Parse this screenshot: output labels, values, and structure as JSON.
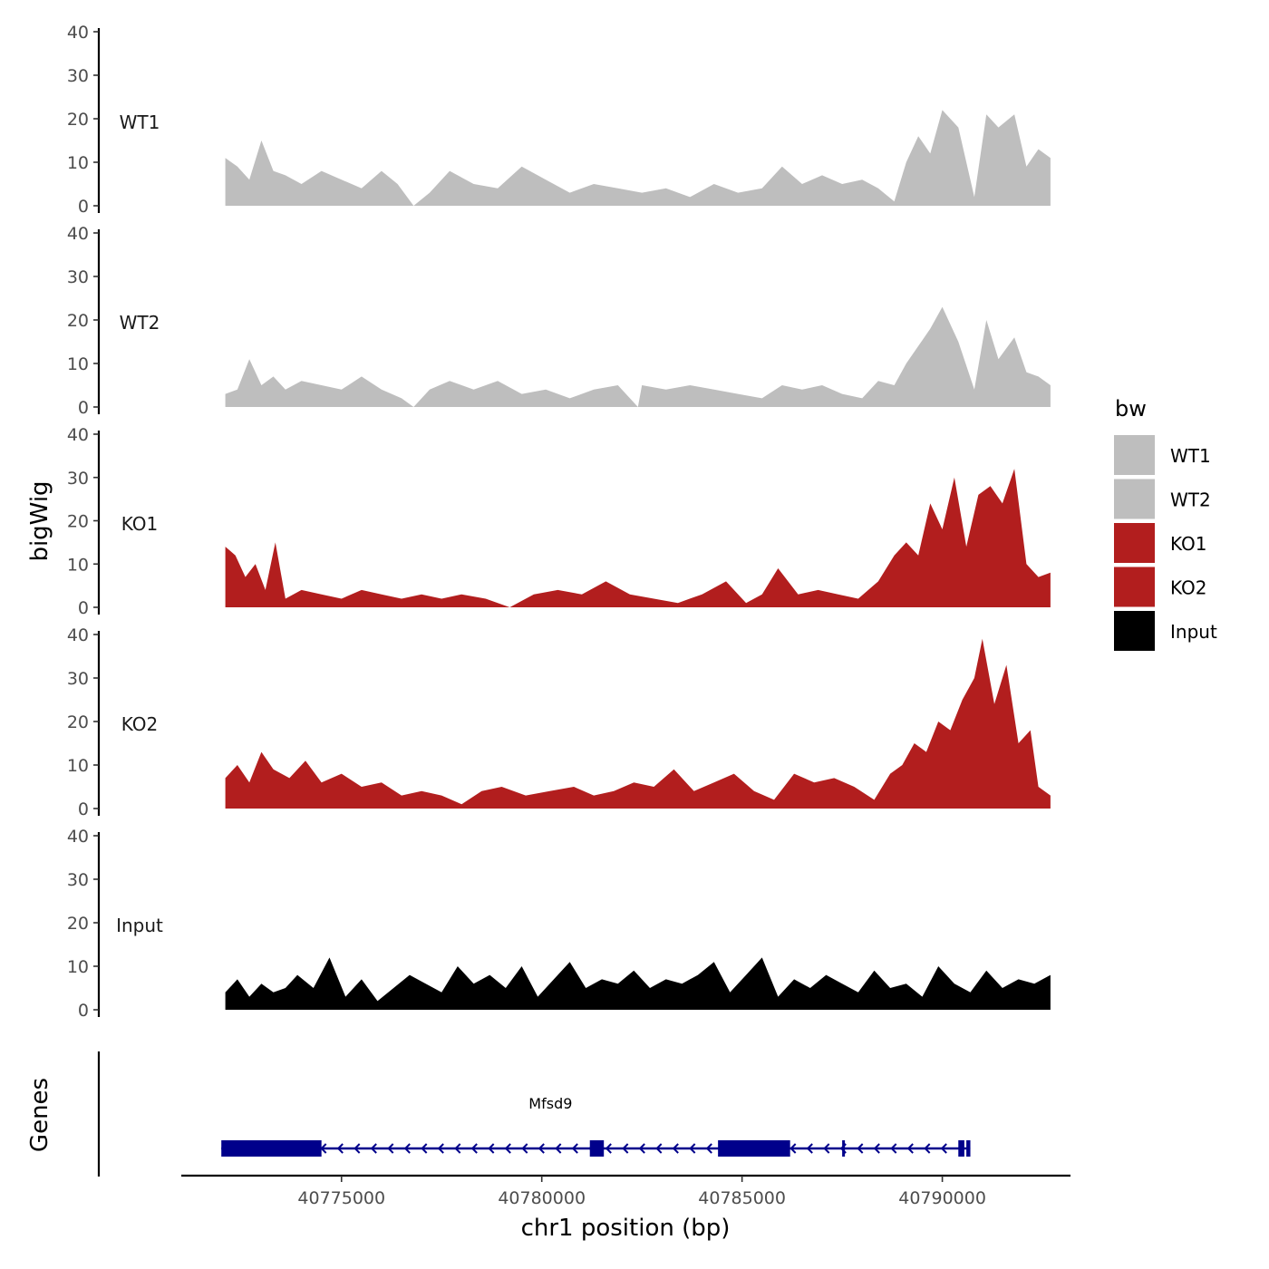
{
  "chart_data": {
    "type": "area",
    "title": "",
    "ylabel": "bigWig",
    "xlabel": "chr1 position (bp)",
    "genes_label": "Genes",
    "ylim": [
      0,
      40
    ],
    "yticks": [
      0,
      10,
      20,
      30,
      40
    ],
    "ytick_labels": [
      "0",
      "10",
      "20",
      "30",
      "40"
    ],
    "xlim": [
      40771000,
      40793200
    ],
    "xticks": [
      40775000,
      40780000,
      40785000,
      40790000
    ],
    "xtick_labels": [
      "40775000",
      "40780000",
      "40785000",
      "40790000"
    ],
    "legend": {
      "title": "bw",
      "placement": "right",
      "entries": [
        {
          "label": "WT1",
          "color": "#bebebe"
        },
        {
          "label": "WT2",
          "color": "#bebebe"
        },
        {
          "label": "KO1",
          "color": "#b21e1e"
        },
        {
          "label": "KO2",
          "color": "#b21e1e"
        },
        {
          "label": "Input",
          "color": "#000000"
        }
      ]
    },
    "series": [
      {
        "name": "WT1",
        "color": "#bebebe",
        "x": [
          40772100,
          40772400,
          40772700,
          40773000,
          40773300,
          40773600,
          40774000,
          40774500,
          40775000,
          40775500,
          40776000,
          40776400,
          40776800,
          40777200,
          40777700,
          40778300,
          40778900,
          40779500,
          40780100,
          40780700,
          40781300,
          40781900,
          40782500,
          40783100,
          40783700,
          40784300,
          40784900,
          40785500,
          40786000,
          40786500,
          40787000,
          40787500,
          40788000,
          40788400,
          40788800,
          40789100,
          40789400,
          40789700,
          40790000,
          40790400,
          40790800,
          40791100,
          40791400,
          40791800,
          40792100,
          40792400,
          40792700
        ],
        "values": [
          11,
          9,
          6,
          15,
          8,
          7,
          5,
          8,
          6,
          4,
          8,
          5,
          0,
          3,
          8,
          5,
          4,
          9,
          6,
          3,
          5,
          4,
          3,
          4,
          2,
          5,
          3,
          4,
          9,
          5,
          7,
          5,
          6,
          4,
          1,
          10,
          16,
          12,
          22,
          18,
          2,
          21,
          18,
          21,
          9,
          13,
          11
        ]
      },
      {
        "name": "WT2",
        "color": "#bebebe",
        "x": [
          40772100,
          40772400,
          40772700,
          40773000,
          40773300,
          40773600,
          40774000,
          40774500,
          40775000,
          40775500,
          40776000,
          40776500,
          40776800,
          40777200,
          40777700,
          40778300,
          40778900,
          40779500,
          40780100,
          40780700,
          40781300,
          40781900,
          40782400,
          40782500,
          40783100,
          40783700,
          40784300,
          40784900,
          40785500,
          40786000,
          40786500,
          40787000,
          40787500,
          40788000,
          40788400,
          40788800,
          40789100,
          40789400,
          40789700,
          40790000,
          40790400,
          40790800,
          40791100,
          40791400,
          40791800,
          40792100,
          40792400,
          40792700
        ],
        "values": [
          3,
          4,
          11,
          5,
          7,
          4,
          6,
          5,
          4,
          7,
          4,
          2,
          0,
          4,
          6,
          4,
          6,
          3,
          4,
          2,
          4,
          5,
          0,
          5,
          4,
          5,
          4,
          3,
          2,
          5,
          4,
          5,
          3,
          2,
          6,
          5,
          10,
          14,
          18,
          23,
          15,
          4,
          20,
          11,
          16,
          8,
          7,
          5
        ]
      },
      {
        "name": "KO1",
        "color": "#b21e1e",
        "x": [
          40772100,
          40772350,
          40772600,
          40772850,
          40773100,
          40773350,
          40773600,
          40774000,
          40774500,
          40775000,
          40775500,
          40776000,
          40776500,
          40777000,
          40777500,
          40778000,
          40778600,
          40779200,
          40779800,
          40780400,
          40781000,
          40781600,
          40782200,
          40782800,
          40783400,
          40784000,
          40784600,
          40785100,
          40785500,
          40785900,
          40786400,
          40786900,
          40787400,
          40787900,
          40788400,
          40788800,
          40789100,
          40789400,
          40789700,
          40790000,
          40790300,
          40790600,
          40790900,
          40791200,
          40791500,
          40791800,
          40792100,
          40792400,
          40792700
        ],
        "values": [
          14,
          12,
          7,
          10,
          4,
          15,
          2,
          4,
          3,
          2,
          4,
          3,
          2,
          3,
          2,
          3,
          2,
          0,
          3,
          4,
          3,
          6,
          3,
          2,
          1,
          3,
          6,
          1,
          3,
          9,
          3,
          4,
          3,
          2,
          6,
          12,
          15,
          12,
          24,
          18,
          30,
          14,
          26,
          28,
          24,
          32,
          10,
          7,
          8
        ]
      },
      {
        "name": "KO2",
        "color": "#b21e1e",
        "x": [
          40772100,
          40772400,
          40772700,
          40773000,
          40773300,
          40773700,
          40774100,
          40774500,
          40775000,
          40775500,
          40776000,
          40776500,
          40777000,
          40777500,
          40778000,
          40778500,
          40779000,
          40779600,
          40780200,
          40780800,
          40781300,
          40781800,
          40782300,
          40782800,
          40783300,
          40783800,
          40784300,
          40784800,
          40785300,
          40785800,
          40786300,
          40786800,
          40787300,
          40787800,
          40788300,
          40788700,
          40789000,
          40789300,
          40789600,
          40789900,
          40790200,
          40790500,
          40790800,
          40791000,
          40791300,
          40791600,
          40791900,
          40792200,
          40792400,
          40792700
        ],
        "values": [
          7,
          10,
          6,
          13,
          9,
          7,
          11,
          6,
          8,
          5,
          6,
          3,
          4,
          3,
          1,
          4,
          5,
          3,
          4,
          5,
          3,
          4,
          6,
          5,
          9,
          4,
          6,
          8,
          4,
          2,
          8,
          6,
          7,
          5,
          2,
          8,
          10,
          15,
          13,
          20,
          18,
          25,
          30,
          39,
          24,
          33,
          15,
          18,
          5,
          3
        ]
      },
      {
        "name": "Input",
        "color": "#000000",
        "x": [
          40772100,
          40772400,
          40772700,
          40773000,
          40773300,
          40773600,
          40773900,
          40774300,
          40774700,
          40775100,
          40775500,
          40775900,
          40776300,
          40776700,
          40777100,
          40777500,
          40777900,
          40778300,
          40778700,
          40779100,
          40779500,
          40779900,
          40780300,
          40780700,
          40781100,
          40781500,
          40781900,
          40782300,
          40782700,
          40783100,
          40783500,
          40783900,
          40784300,
          40784700,
          40785100,
          40785500,
          40785900,
          40786300,
          40786700,
          40787100,
          40787500,
          40787900,
          40788300,
          40788700,
          40789100,
          40789500,
          40789900,
          40790300,
          40790700,
          40791100,
          40791500,
          40791900,
          40792300,
          40792700
        ],
        "values": [
          4,
          7,
          3,
          6,
          4,
          5,
          8,
          5,
          12,
          3,
          7,
          2,
          5,
          8,
          6,
          4,
          10,
          6,
          8,
          5,
          10,
          3,
          7,
          11,
          5,
          7,
          6,
          9,
          5,
          7,
          6,
          8,
          11,
          4,
          8,
          12,
          3,
          7,
          5,
          8,
          6,
          4,
          9,
          5,
          6,
          3,
          10,
          6,
          4,
          9,
          5,
          7,
          6,
          8
        ]
      }
    ],
    "genes": [
      {
        "name": "Mfsd9",
        "strand": "-",
        "start": 40772000,
        "end": 40790700,
        "exons": [
          [
            40772000,
            40774500
          ],
          [
            40781200,
            40781550
          ],
          [
            40784400,
            40786200
          ],
          [
            40787500,
            40787560
          ],
          [
            40790400,
            40790550
          ],
          [
            40790600,
            40790700
          ]
        ],
        "color": "#00008b"
      }
    ]
  }
}
